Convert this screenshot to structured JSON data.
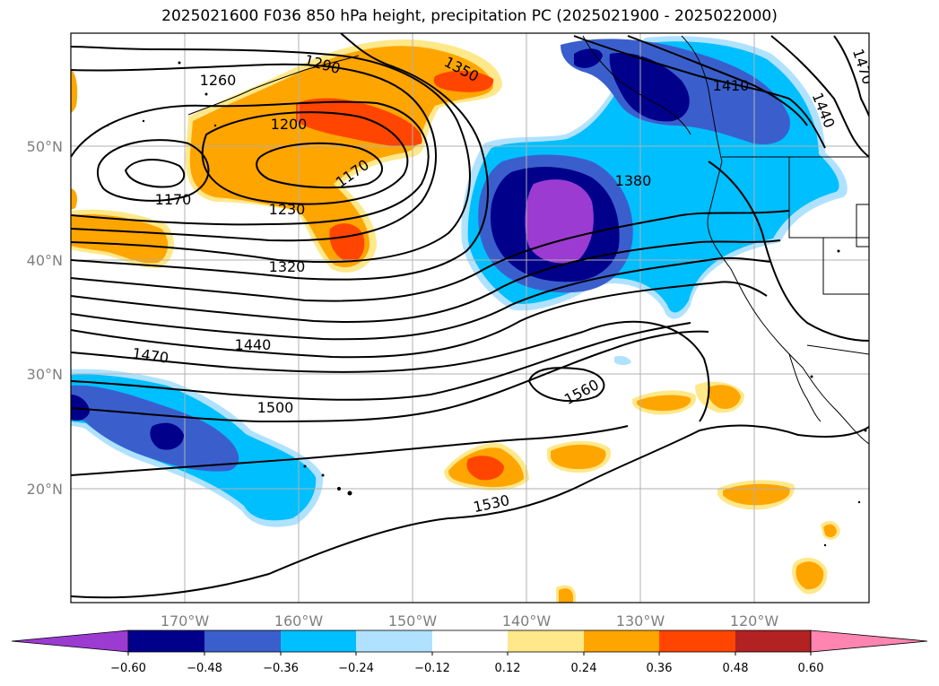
{
  "title": "2025021600 F036 850 hPa height, precipitation PC (2025021900 - 2025022000)",
  "map": {
    "lon_labels": [
      "170°W",
      "160°W",
      "150°W",
      "140°W",
      "130°W",
      "120°W"
    ],
    "lat_labels": [
      "50°N",
      "40°N",
      "30°N",
      "20°N"
    ],
    "contour_labels": [
      "1260",
      "1290",
      "1350",
      "1200",
      "1170",
      "1170",
      "1230",
      "1320",
      "1440",
      "1470",
      "1500",
      "1380",
      "1410",
      "1440",
      "1470",
      "1560",
      "1530"
    ]
  },
  "colorbar": {
    "ticks": [
      "−0.60",
      "−0.48",
      "−0.36",
      "−0.24",
      "−0.12",
      "0.12",
      "0.24",
      "0.36",
      "0.48",
      "0.60"
    ],
    "colors": [
      "#9b3bd1",
      "#00008b",
      "#3a5fcd",
      "#00bfff",
      "#b0e2ff",
      "#ffffff",
      "#ffe88a",
      "#ffa500",
      "#ff4500",
      "#b22222",
      "#ff85b0"
    ]
  },
  "colors": {
    "violet": "#9b3bd1",
    "navy": "#00008b",
    "royal": "#3a5fcd",
    "sky": "#00bfff",
    "pale_blue": "#b0e2ff",
    "light_yellow": "#ffe88a",
    "orange": "#ffa500",
    "orange_red": "#ff4500",
    "firebrick": "#b22222",
    "pink": "#ff85b0"
  }
}
